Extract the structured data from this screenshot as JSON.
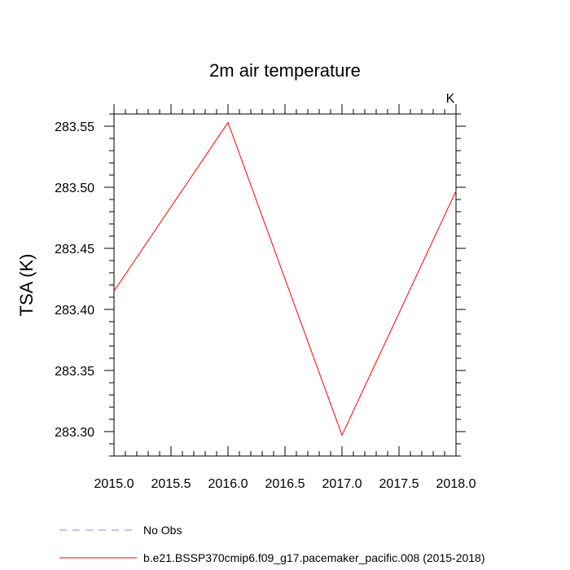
{
  "chart_data": {
    "type": "line",
    "title": "2m air temperature",
    "units_label": "K",
    "xlabel": "",
    "ylabel": "TSA  (K)",
    "xlim": [
      2015.0,
      2018.0
    ],
    "ylim": [
      283.28,
      283.56
    ],
    "x_ticks": [
      2015.0,
      2015.5,
      2016.0,
      2016.5,
      2017.0,
      2017.5,
      2018.0
    ],
    "x_tick_labels": [
      "2015.0",
      "2015.5",
      "2016.0",
      "2016.5",
      "2017.0",
      "2017.5",
      "2018.0"
    ],
    "y_ticks": [
      283.3,
      283.35,
      283.4,
      283.45,
      283.5,
      283.55
    ],
    "y_tick_labels": [
      "283.30",
      "283.35",
      "283.40",
      "283.45",
      "283.50",
      "283.55"
    ],
    "grid": false,
    "legend_position": "bottom-left",
    "series": [
      {
        "name": "b.e21.BSSP370cmip6.f09_g17.pacemaker_pacific.008 (2015-2018)",
        "color": "#ff0000",
        "dash": "solid",
        "x": [
          2015.0,
          2016.0,
          2017.0,
          2018.0
        ],
        "y": [
          283.415,
          283.553,
          283.297,
          283.497
        ]
      }
    ],
    "legend": [
      {
        "label": "No Obs",
        "color": "#8080ff",
        "dash": "dashed"
      },
      {
        "label": "b.e21.BSSP370cmip6.f09_g17.pacemaker_pacific.008 (2015-2018)",
        "color": "#ff0000",
        "dash": "solid"
      }
    ]
  }
}
